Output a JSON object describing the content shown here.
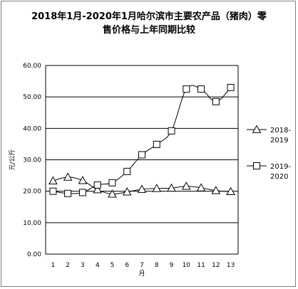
{
  "chart_data": {
    "type": "line",
    "title_lines": [
      "2018年1月-2020年1月哈尔滨市主要农产品（猪肉）零",
      "售价格与上年同期比较"
    ],
    "xlabel": "月",
    "ylabel": "元/公斤",
    "ylim": [
      0,
      60
    ],
    "yticks": [
      "0.00",
      "10.00",
      "20.00",
      "30.00",
      "40.00",
      "50.00",
      "60.00"
    ],
    "categories": [
      "1",
      "2",
      "3",
      "4",
      "5",
      "6",
      "7",
      "8",
      "9",
      "10",
      "11",
      "12",
      "13"
    ],
    "grid": true,
    "legend_position": "right",
    "series": [
      {
        "name": "2018-\n2019",
        "legend_lines": [
          "2018-",
          "2019"
        ],
        "marker": "triangle",
        "values": [
          23.3,
          24.5,
          23.4,
          20.5,
          19.1,
          19.8,
          20.6,
          20.9,
          21.0,
          21.6,
          21.1,
          20.2,
          19.9
        ]
      },
      {
        "name": "2019-\n2020",
        "legend_lines": [
          "2019-",
          "2020"
        ],
        "marker": "square",
        "values": [
          20.0,
          19.3,
          19.6,
          22.0,
          22.7,
          26.3,
          31.6,
          34.9,
          39.2,
          52.5,
          52.5,
          48.5,
          53.0
        ]
      }
    ]
  }
}
